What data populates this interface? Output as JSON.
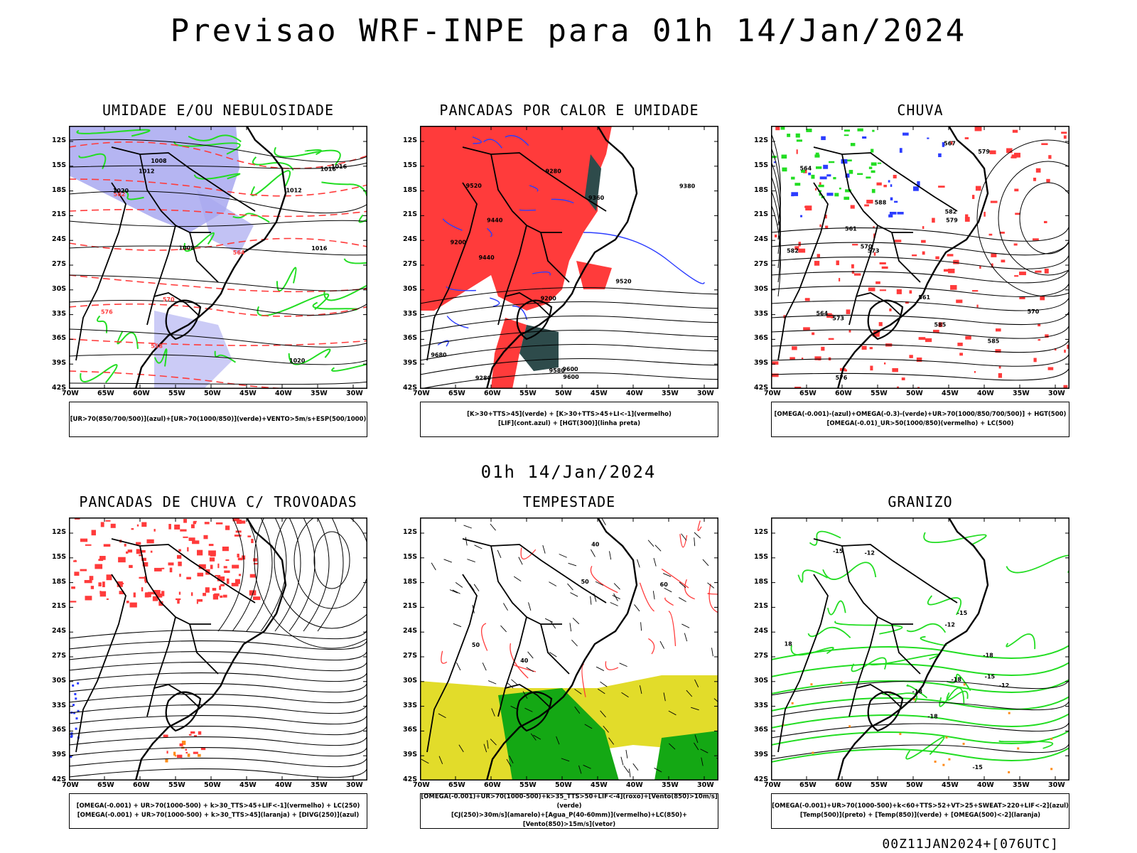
{
  "title": "Previsao WRF-INPE  para 01h 14/Jan/2024",
  "mid_title": "01h 14/Jan/2024",
  "footer": "00Z11JAN2024+[076UTC]",
  "axes": {
    "lat": [
      "12S",
      "15S",
      "18S",
      "21S",
      "24S",
      "27S",
      "30S",
      "33S",
      "36S",
      "39S",
      "42S"
    ],
    "lon": [
      "70W",
      "65W",
      "60W",
      "55W",
      "50W",
      "45W",
      "40W",
      "35W",
      "30W"
    ]
  },
  "colors": {
    "blue": "#2b3cff",
    "green": "#22dd22",
    "red": "#ff3b3b",
    "lavender": "#a8a8f0",
    "yellow": "#e2dc2a",
    "darkgreen": "#2e4b4b",
    "orange": "#ff8c1a"
  },
  "panels": [
    {
      "title": "UMIDADE E/OU NEBULOSIDADE",
      "legend": [
        "[UR>70(850/700/500)](azul)+[UR>70(1000/850)](verde)+VENTO>5m/s+ESP(500/1000)"
      ],
      "labels": [
        "1012",
        "1016",
        "1008",
        "1020",
        "576",
        "582",
        "564",
        "558",
        "570",
        "1016",
        "1012",
        "1008",
        "1020",
        "1016"
      ]
    },
    {
      "title": "PANCADAS POR CALOR E UMIDADE",
      "legend": [
        "[K>30+TTS>45](verde) + [K>30+TTS>45+LI<-1](vermelho)",
        "[LIF](cont.azul) + [HGT(300)](linha preta)"
      ],
      "labels": [
        "9600",
        "9580",
        "9680",
        "9600",
        "9520",
        "9440",
        "9360",
        "9280",
        "9200",
        "9520",
        "9440",
        "9380",
        "9280",
        "9200"
      ]
    },
    {
      "title": "CHUVA",
      "legend": [
        "[OMEGA(-0.001)-(azul)+OMEGA(-0.3)-(verde)+UR>70(1000/850/700/500)] + HGT(500)",
        "[OMEGA(-0.01)_UR>50(1000/850)(vermelho) + LC(500)"
      ],
      "labels": [
        "585",
        "582",
        "579",
        "576",
        "573",
        "570",
        "567",
        "564",
        "561",
        "588",
        "585",
        "582",
        "579",
        "573",
        "570",
        "564",
        "561"
      ]
    },
    {
      "title": "PANCADAS DE CHUVA C/ TROVOADAS",
      "legend": [
        "[OMEGA(-0.001) + UR>70(1000-500) + k>30_TTS>45+LIF<-1](vermelho) + LC(250)",
        "[OMEGA(-0.001) + UR>70(1000-500) + k>30_TTS>45](laranja) + [DIVG(250)](azul)"
      ],
      "labels": []
    },
    {
      "title": "TEMPESTADE",
      "legend": [
        "[OMEGA(-0.001)+UR>70(1000-500)+k>35_TTS>50+LIF<-4](roxo)+[Vento(850)>10m/s](verde)",
        "[CJ(250)>30m/s](amarelo)+[Agua_P(40-60mm)](vermelho)+LC(850)+[Vento(850)>15m/s](vetor)"
      ],
      "labels": [
        "40",
        "50",
        "60",
        "40",
        "50"
      ]
    },
    {
      "title": "GRANIZO",
      "legend": [
        "[OMEGA(-0.001)+UR>70(1000-500)+k<60+TTS>52+VT>25+SWEAT>220+LIF<-2](azul)",
        "[Temp(500)](preto) + [Temp(850)](verde) + [OMEGA(500)<-2](laranja)"
      ],
      "labels": [
        "-12",
        "-15",
        "-18",
        "-12",
        "-15",
        "-18",
        "-15",
        "-18",
        "-12",
        "18",
        "-15",
        "-18"
      ]
    }
  ]
}
